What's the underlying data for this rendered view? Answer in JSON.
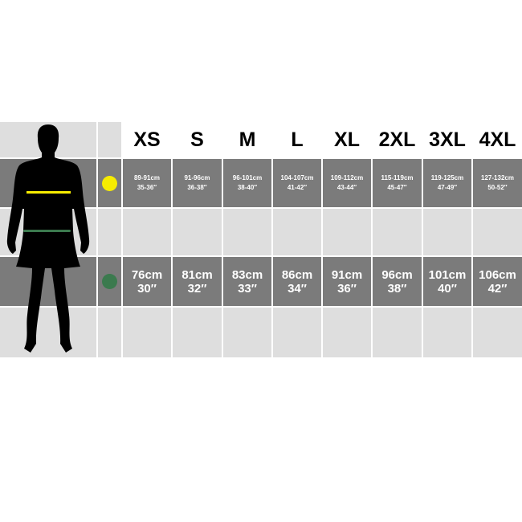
{
  "sizes": [
    "XS",
    "S",
    "M",
    "L",
    "XL",
    "2XL",
    "3XL",
    "4XL"
  ],
  "chest": {
    "marker_color": "#f7ec00",
    "cm": [
      "89-91cm",
      "91-96cm",
      "96-101cm",
      "104-107cm",
      "109-112cm",
      "115-119cm",
      "119-125cm",
      "127-132cm"
    ],
    "inches": [
      "35-36″",
      "36-38″",
      "38-40″",
      "41-42″",
      "43-44″",
      "45-47″",
      "47-49″",
      "50-52″"
    ]
  },
  "waist": {
    "marker_color": "#3b7a4e",
    "cm": [
      "76cm",
      "81cm",
      "83cm",
      "86cm",
      "91cm",
      "96cm",
      "101cm",
      "106cm"
    ],
    "inches": [
      "30″",
      "32″",
      "33″",
      "34″",
      "36″",
      "38″",
      "40″",
      "42″"
    ]
  }
}
